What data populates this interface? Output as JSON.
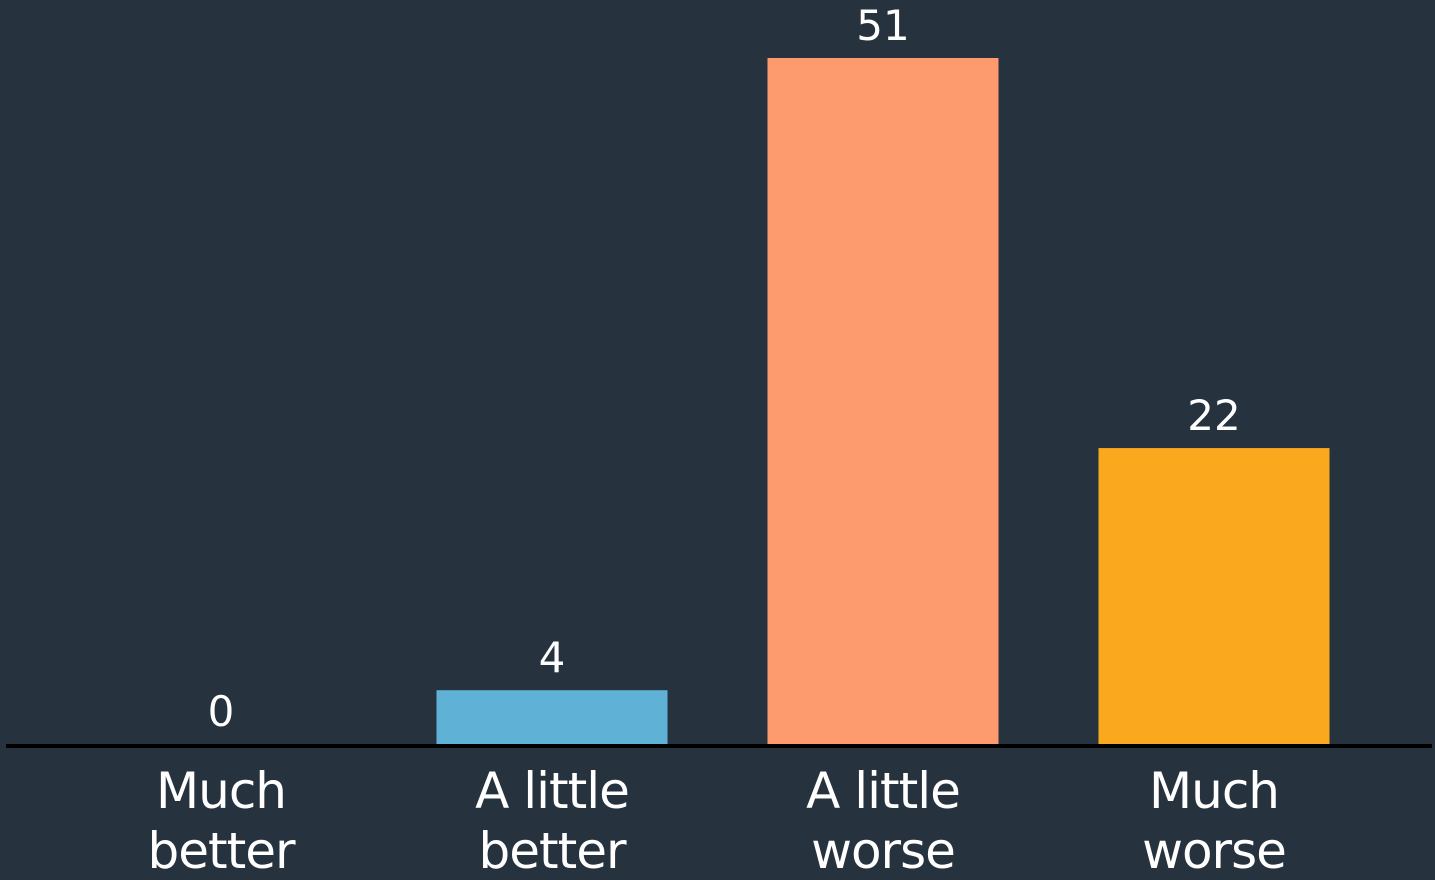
{
  "chart_data": {
    "type": "bar",
    "categories": [
      [
        "Much",
        "better"
      ],
      [
        "A little",
        "better"
      ],
      [
        "A little",
        "worse"
      ],
      [
        "Much",
        "worse"
      ]
    ],
    "values": [
      0,
      4,
      51,
      22
    ],
    "colors": [
      "#5fb1d6",
      "#5fb1d6",
      "#fd9a6e",
      "#faa91f"
    ],
    "background": "#27323f",
    "axis_color": "#000000",
    "label_color": "#ffffff",
    "title": "",
    "xlabel": "",
    "ylabel": "",
    "ylim": [
      0,
      51
    ],
    "grid": false,
    "show_data_labels": true
  }
}
